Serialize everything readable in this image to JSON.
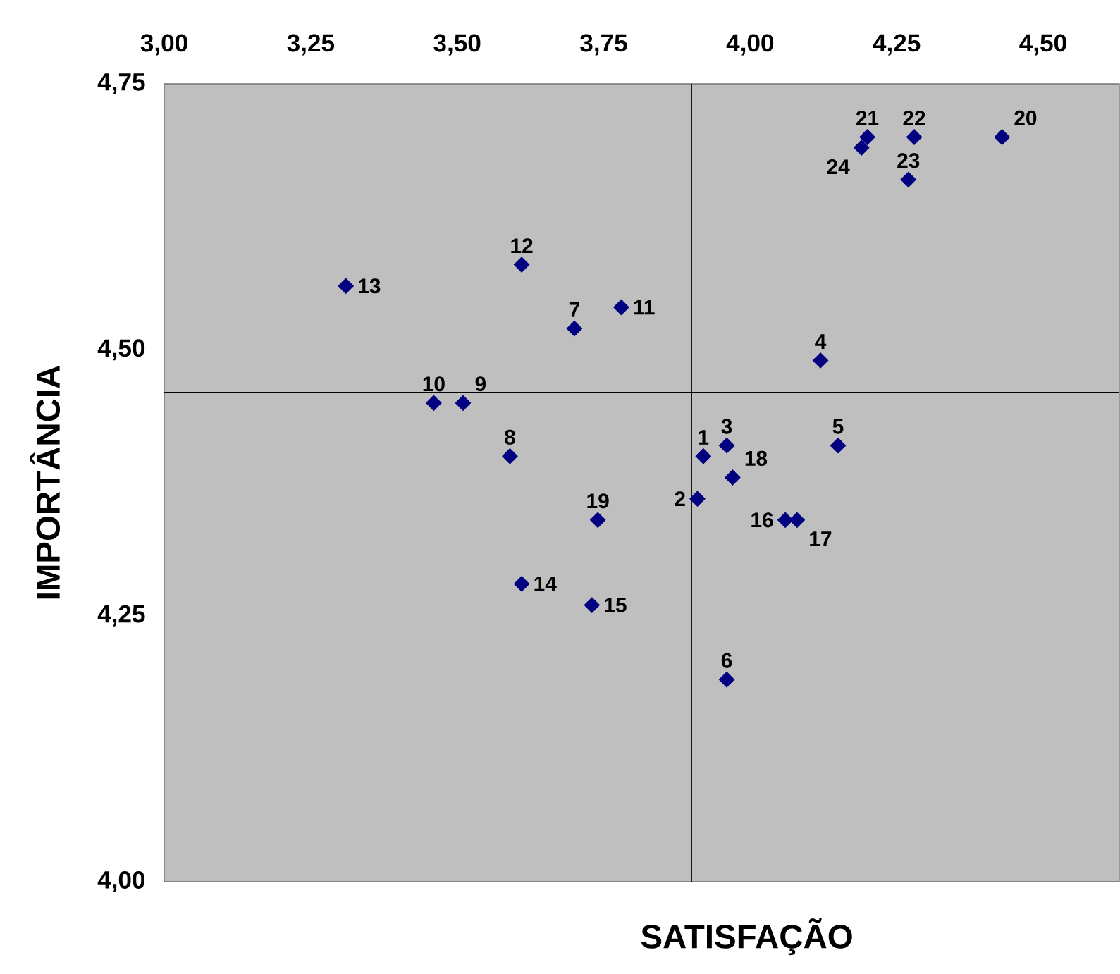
{
  "chart_data": {
    "type": "scatter",
    "xlabel": "SATISFAÇÃO",
    "ylabel": "IMPORTÂNCIA",
    "xlim": [
      3,
      4.63
    ],
    "ylim": [
      4,
      4.75
    ],
    "xticks": [
      {
        "value": 3,
        "label": "3,00"
      },
      {
        "value": 3.25,
        "label": "3,25"
      },
      {
        "value": 3.5,
        "label": "3,50"
      },
      {
        "value": 3.75,
        "label": "3,75"
      },
      {
        "value": 4,
        "label": "4,00"
      },
      {
        "value": 4.25,
        "label": "4,25"
      },
      {
        "value": 4.5,
        "label": "4,50"
      }
    ],
    "yticks": [
      {
        "value": 4,
        "label": "4,00"
      },
      {
        "value": 4.25,
        "label": "4,25"
      },
      {
        "value": 4.5,
        "label": "4,50"
      },
      {
        "value": 4.75,
        "label": "4,75"
      }
    ],
    "marker": "diamond",
    "color": "#000080",
    "x": [
      3.92,
      3.91,
      3.96,
      4.12,
      4.15,
      3.96,
      3.7,
      3.59,
      3.51,
      3.46,
      3.78,
      3.61,
      3.31,
      3.61,
      3.73,
      4.06,
      4.08,
      3.97,
      3.74,
      4.43,
      4.2,
      4.28,
      4.27,
      4.19
    ],
    "values": [
      4.4,
      4.36,
      4.41,
      4.49,
      4.41,
      4.19,
      4.52,
      4.4,
      4.45,
      4.45,
      4.54,
      4.58,
      4.56,
      4.28,
      4.26,
      4.34,
      4.34,
      4.38,
      4.34,
      4.7,
      4.7,
      4.7,
      4.66,
      4.69
    ],
    "annotations": [
      {
        "text": "1",
        "x": 3.92,
        "y": 4.4
      },
      {
        "text": "2",
        "x": 3.91,
        "y": 4.36
      },
      {
        "text": "3",
        "x": 3.96,
        "y": 4.41
      },
      {
        "text": "4",
        "x": 4.12,
        "y": 4.49
      },
      {
        "text": "5",
        "x": 4.15,
        "y": 4.41
      },
      {
        "text": "6",
        "x": 3.96,
        "y": 4.19
      },
      {
        "text": "7",
        "x": 3.7,
        "y": 4.52
      },
      {
        "text": "8",
        "x": 3.59,
        "y": 4.4
      },
      {
        "text": "9",
        "x": 3.51,
        "y": 4.45
      },
      {
        "text": "10",
        "x": 3.46,
        "y": 4.45
      },
      {
        "text": "11",
        "x": 3.78,
        "y": 4.54
      },
      {
        "text": "12",
        "x": 3.61,
        "y": 4.58
      },
      {
        "text": "13",
        "x": 3.31,
        "y": 4.56
      },
      {
        "text": "14",
        "x": 3.61,
        "y": 4.28
      },
      {
        "text": "15",
        "x": 3.73,
        "y": 4.26
      },
      {
        "text": "16",
        "x": 4.06,
        "y": 4.34
      },
      {
        "text": "17",
        "x": 4.08,
        "y": 4.34
      },
      {
        "text": "18",
        "x": 3.97,
        "y": 4.38
      },
      {
        "text": "19",
        "x": 3.74,
        "y": 4.34
      },
      {
        "text": "20",
        "x": 4.43,
        "y": 4.7
      },
      {
        "text": "21",
        "x": 4.2,
        "y": 4.7
      },
      {
        "text": "22",
        "x": 4.28,
        "y": 4.7
      },
      {
        "text": "23",
        "x": 4.27,
        "y": 4.66
      },
      {
        "text": "24",
        "x": 4.19,
        "y": 4.69
      }
    ],
    "ref_lines": [
      {
        "axis": "x",
        "value": 3.9,
        "color": "#000000"
      },
      {
        "axis": "y",
        "value": 4.46,
        "color": "#000000"
      }
    ]
  }
}
